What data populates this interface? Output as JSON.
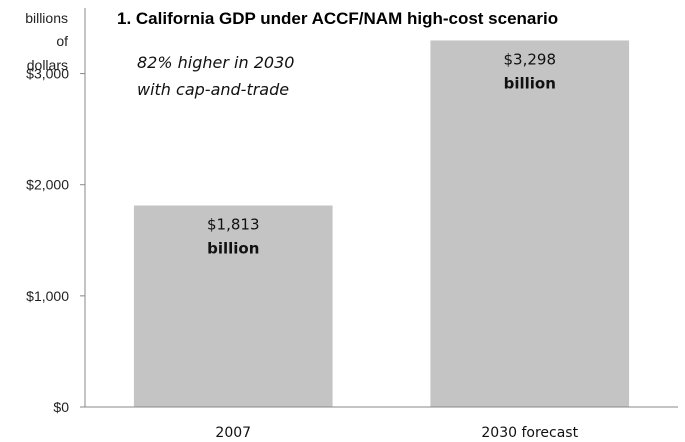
{
  "chart_data": {
    "type": "bar",
    "title": "1. California GDP under ACCF/NAM high-cost scenario",
    "ylabel_lines": [
      "billions",
      "of",
      "dollars"
    ],
    "annotation_lines": [
      "82% higher in 2030",
      "with cap-and-trade"
    ],
    "categories": [
      "2007",
      "2030 forecast"
    ],
    "values": [
      1813,
      3298
    ],
    "value_labels": [
      "$1,813",
      "$3,298"
    ],
    "value_unit_label": "billion",
    "ylim": [
      0,
      3500
    ],
    "yticks": [
      0,
      1000,
      2000,
      3000
    ],
    "ytick_labels": [
      "$0",
      "$1,000",
      "$2,000",
      "$3,000"
    ],
    "bar_color": "#c4c4c4",
    "grid": false
  }
}
